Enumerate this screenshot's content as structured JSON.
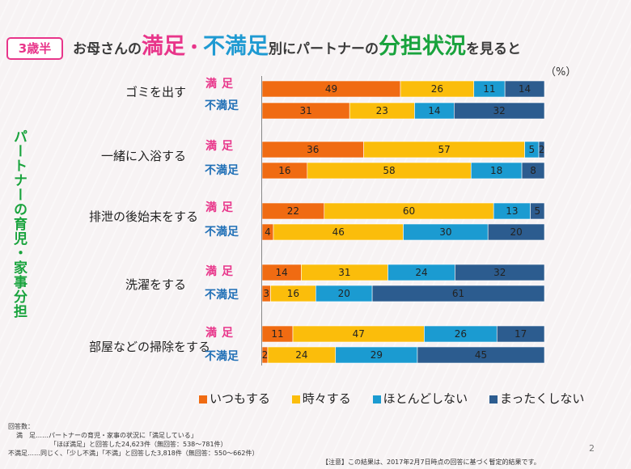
{
  "badge": "3歳半",
  "title": {
    "p1": "お母さんの",
    "p2": "満足",
    "dot": "・",
    "p3": "不満足",
    "p4": "別にパートナーの",
    "p5": "分担状況",
    "p6": "を見ると"
  },
  "unit": "（%）",
  "side_label": "パートナーの育児・家事分担",
  "group_labels": {
    "satisfied": "満足",
    "unsatisfied": "不満足"
  },
  "colors": {
    "series": [
      "#f06b12",
      "#fbbd0b",
      "#1b9bd1",
      "#2c5c8f"
    ],
    "accent_pink": "#e8358a",
    "accent_blue": "#1f9ad2",
    "accent_green": "#19a33d"
  },
  "chart_data": {
    "type": "bar",
    "orientation": "horizontal",
    "stacked": "100%",
    "xlim": [
      0,
      100
    ],
    "legend_position": "bottom",
    "series": [
      {
        "name": "いつもする"
      },
      {
        "name": "時々する"
      },
      {
        "name": "ほとんどしない"
      },
      {
        "name": "まったくしない"
      }
    ],
    "categories": [
      {
        "label": "ゴミを出す",
        "satisfied": [
          49,
          26,
          11,
          14
        ],
        "unsatisfied": [
          31,
          23,
          14,
          32
        ]
      },
      {
        "label": "一緒に入浴する",
        "satisfied": [
          36,
          57,
          5,
          2
        ],
        "unsatisfied": [
          16,
          58,
          18,
          8
        ]
      },
      {
        "label": "排泄の後始末をする",
        "satisfied": [
          22,
          60,
          13,
          5
        ],
        "unsatisfied": [
          4,
          46,
          30,
          20
        ]
      },
      {
        "label": "洗濯をする",
        "satisfied": [
          14,
          31,
          24,
          32
        ],
        "unsatisfied": [
          3,
          16,
          20,
          61
        ]
      },
      {
        "label": "部屋などの掃除をする",
        "satisfied": [
          11,
          47,
          26,
          17
        ],
        "unsatisfied": [
          2,
          24,
          29,
          45
        ]
      }
    ]
  },
  "notes": {
    "l1": "回答数：",
    "l2": "満　足……パートナーの育児・家事の状況に「満足している」",
    "l3": "「ほぼ満足」と回答した24,623件（無回答：538〜781件）",
    "l4": "不満足……同じく、「少し不満」「不満」と回答した3,818件（無回答：550〜662件）"
  },
  "footer": "【注意】この結果は、2017年2月7日時点の回答に基づく暫定的結果です。",
  "page_number": "2"
}
